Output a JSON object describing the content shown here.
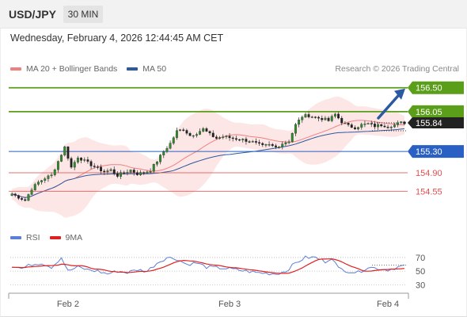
{
  "header": {
    "symbol": "USD/JPY",
    "interval": "30 MIN",
    "timestamp": "Wednesday, February 4, 2026 12:44:45 AM CET"
  },
  "legend": {
    "bollinger": {
      "label": "MA 20 + Bollinger Bands",
      "color": "#f08080"
    },
    "ma50": {
      "label": "MA 50",
      "color": "#2c5aa0"
    },
    "copyright": "Research © 2026 Trading Central"
  },
  "rsi_legend": {
    "rsi": {
      "label": "RSI",
      "color": "#5b7fd6"
    },
    "ma9": {
      "label": "9MA",
      "color": "#e02020"
    }
  },
  "levels": [
    {
      "value": 156.5,
      "label": "156.50",
      "kind": "resistance",
      "color": "#5a9e1a"
    },
    {
      "value": 156.05,
      "label": "156.05",
      "kind": "resistance",
      "color": "#5a9e1a"
    },
    {
      "value": 155.3,
      "label": "155.30",
      "kind": "pivot",
      "color": "#2a5fc4"
    },
    {
      "value": 154.9,
      "label": "154.90",
      "kind": "support",
      "color": "#e05050"
    },
    {
      "value": 154.55,
      "label": "154.55",
      "kind": "support",
      "color": "#e05050"
    }
  ],
  "current_price": {
    "value": 155.84,
    "label": "155.84"
  },
  "x_axis": {
    "labels": [
      "Feb 2",
      "Feb 3",
      "Feb 4"
    ]
  },
  "rsi_axis": {
    "labels": [
      "70",
      "50",
      "30"
    ]
  },
  "chart_data": {
    "type": "candlestick",
    "series_count": 120,
    "y_range": [
      153.9,
      156.72
    ],
    "rsi_range": [
      20,
      85
    ],
    "x_tick_labels": [
      "Feb 2",
      "Feb 3",
      "Feb 4"
    ],
    "rsi_ticks": [
      70,
      50,
      30
    ],
    "close_path": [
      [
        0,
        154.5
      ],
      [
        4,
        154.38
      ],
      [
        6,
        154.6
      ],
      [
        8,
        154.72
      ],
      [
        10,
        154.8
      ],
      [
        12,
        154.85
      ],
      [
        16,
        155.38
      ],
      [
        18,
        155.0
      ],
      [
        20,
        155.2
      ],
      [
        22,
        155.12
      ],
      [
        24,
        155.05
      ],
      [
        26,
        154.98
      ],
      [
        28,
        154.92
      ],
      [
        30,
        154.95
      ],
      [
        32,
        154.85
      ],
      [
        34,
        154.9
      ],
      [
        36,
        154.95
      ],
      [
        38,
        154.88
      ],
      [
        40,
        154.9
      ],
      [
        42,
        154.95
      ],
      [
        44,
        155.12
      ],
      [
        46,
        155.3
      ],
      [
        48,
        155.45
      ],
      [
        50,
        155.68
      ],
      [
        52,
        155.72
      ],
      [
        54,
        155.6
      ],
      [
        56,
        155.65
      ],
      [
        58,
        155.72
      ],
      [
        60,
        155.62
      ],
      [
        62,
        155.55
      ],
      [
        64,
        155.58
      ],
      [
        66,
        155.56
      ],
      [
        68,
        155.54
      ],
      [
        70,
        155.52
      ],
      [
        72,
        155.5
      ],
      [
        74,
        155.45
      ],
      [
        76,
        155.4
      ],
      [
        78,
        155.42
      ],
      [
        80,
        155.38
      ],
      [
        82,
        155.45
      ],
      [
        84,
        155.5
      ],
      [
        86,
        155.8
      ],
      [
        88,
        155.96
      ],
      [
        90,
        155.98
      ],
      [
        92,
        155.94
      ],
      [
        94,
        155.92
      ],
      [
        96,
        155.88
      ],
      [
        98,
        156.0
      ],
      [
        100,
        155.86
      ],
      [
        102,
        155.78
      ],
      [
        104,
        155.75
      ],
      [
        106,
        155.8
      ],
      [
        108,
        155.82
      ],
      [
        110,
        155.78
      ],
      [
        112,
        155.8
      ],
      [
        114,
        155.78
      ],
      [
        116,
        155.8
      ],
      [
        118,
        155.84
      ]
    ],
    "rsi_path": [
      [
        0,
        58
      ],
      [
        3,
        54
      ],
      [
        6,
        60
      ],
      [
        9,
        62
      ],
      [
        12,
        56
      ],
      [
        15,
        70
      ],
      [
        17,
        50
      ],
      [
        20,
        56
      ],
      [
        23,
        52
      ],
      [
        26,
        50
      ],
      [
        29,
        46
      ],
      [
        32,
        50
      ],
      [
        35,
        48
      ],
      [
        38,
        52
      ],
      [
        41,
        50
      ],
      [
        44,
        62
      ],
      [
        47,
        70
      ],
      [
        50,
        68
      ],
      [
        53,
        60
      ],
      [
        56,
        62
      ],
      [
        59,
        56
      ],
      [
        62,
        55
      ],
      [
        65,
        54
      ],
      [
        68,
        52
      ],
      [
        71,
        50
      ],
      [
        74,
        48
      ],
      [
        77,
        47
      ],
      [
        80,
        46
      ],
      [
        83,
        50
      ],
      [
        86,
        62
      ],
      [
        89,
        70
      ],
      [
        92,
        70
      ],
      [
        95,
        64
      ],
      [
        97,
        70
      ],
      [
        99,
        54
      ],
      [
        102,
        50
      ],
      [
        105,
        48
      ],
      [
        108,
        56
      ],
      [
        111,
        54
      ],
      [
        114,
        52
      ],
      [
        117,
        56
      ],
      [
        119,
        58
      ]
    ]
  }
}
